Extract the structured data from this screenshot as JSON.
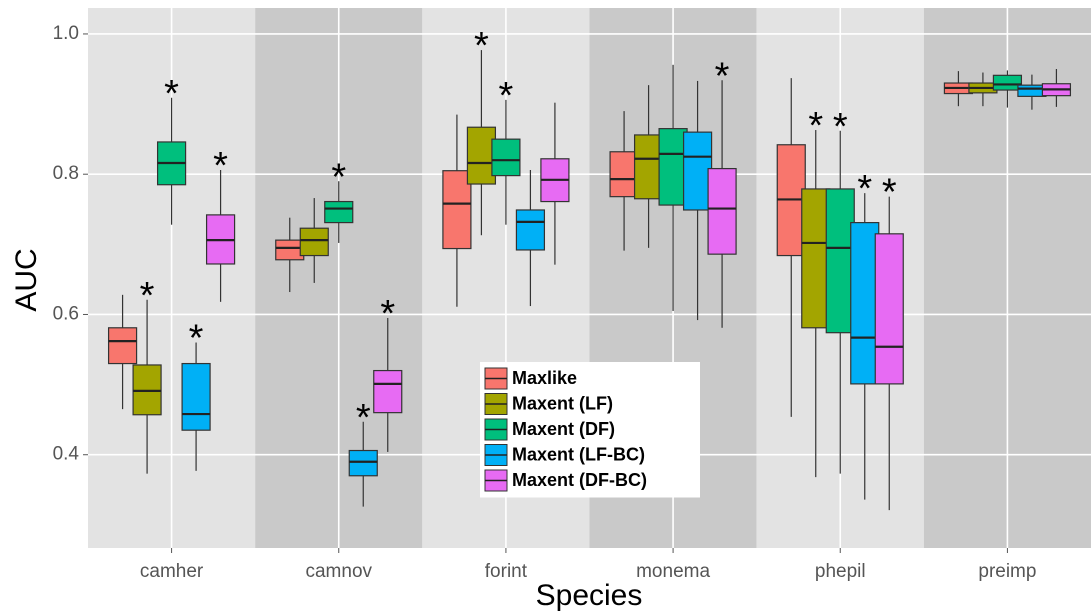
{
  "chart_data": {
    "type": "box",
    "x_label": "Species",
    "y_label": "AUC",
    "categories": [
      "camher",
      "camnov",
      "forint",
      "monema",
      "phepil",
      "preimp"
    ],
    "ylim": [
      0.267,
      1.037
    ],
    "yticks": [
      0.4,
      0.6,
      0.8,
      {
        "value": 1,
        "label": "1.0"
      }
    ],
    "grid": true,
    "legend_position": "center",
    "series": [
      {
        "name": "Maxlike",
        "color": "#F8766D",
        "values": [
          [
            0.465,
            0.53,
            0.562,
            0.581,
            0.628
          ],
          [
            0.632,
            0.678,
            0.695,
            0.706,
            0.738
          ],
          [
            0.611,
            0.694,
            0.758,
            0.805,
            0.885
          ],
          [
            0.691,
            0.768,
            0.793,
            0.832,
            0.89
          ],
          [
            0.454,
            0.684,
            0.764,
            0.842,
            0.937
          ],
          [
            0.897,
            0.915,
            0.923,
            0.93,
            0.947
          ]
        ],
        "markers": [
          null,
          null,
          null,
          null,
          null,
          null
        ]
      },
      {
        "name": "Maxent (LF)",
        "color": "#A3A500",
        "values": [
          [
            0.373,
            0.457,
            0.491,
            0.528,
            0.621
          ],
          [
            0.645,
            0.684,
            0.706,
            0.723,
            0.766
          ],
          [
            0.713,
            0.786,
            0.816,
            0.867,
            0.977
          ],
          [
            0.695,
            0.765,
            0.822,
            0.856,
            0.927
          ],
          [
            0.368,
            0.581,
            0.702,
            0.779,
            0.863
          ],
          [
            0.897,
            0.916,
            0.923,
            0.93,
            0.945
          ]
        ],
        "markers": [
          "*",
          null,
          "*",
          null,
          "*",
          null
        ]
      },
      {
        "name": "Maxent (DF)",
        "color": "#00BF7D",
        "values": [
          [
            0.728,
            0.785,
            0.816,
            0.846,
            0.909
          ],
          [
            0.702,
            0.731,
            0.751,
            0.761,
            0.79
          ],
          [
            0.728,
            0.798,
            0.82,
            0.85,
            0.906
          ],
          [
            0.605,
            0.756,
            0.829,
            0.865,
            0.956
          ],
          [
            0.373,
            0.574,
            0.695,
            0.779,
            0.862
          ],
          [
            0.895,
            0.92,
            0.928,
            0.941,
            0.948
          ]
        ],
        "markers": [
          "*",
          "*",
          "*",
          null,
          "*",
          null
        ]
      },
      {
        "name": "Maxent (LF-BC)",
        "color": "#00B0F6",
        "values": [
          [
            0.377,
            0.435,
            0.458,
            0.53,
            0.56
          ],
          [
            0.326,
            0.37,
            0.39,
            0.406,
            0.447
          ],
          [
            0.612,
            0.692,
            0.732,
            0.749,
            0.806
          ],
          [
            0.592,
            0.749,
            0.825,
            0.86,
            0.933
          ],
          [
            0.336,
            0.501,
            0.567,
            0.731,
            0.773
          ],
          [
            0.892,
            0.911,
            0.922,
            0.927,
            0.942
          ]
        ],
        "markers": [
          "*",
          "*",
          null,
          null,
          "*",
          null
        ]
      },
      {
        "name": "Maxent (DF-BC)",
        "color": "#E76BF3",
        "values": [
          [
            0.618,
            0.672,
            0.706,
            0.742,
            0.806
          ],
          [
            0.404,
            0.46,
            0.501,
            0.52,
            0.595
          ],
          [
            0.671,
            0.761,
            0.792,
            0.822,
            0.902
          ],
          [
            0.581,
            0.686,
            0.751,
            0.808,
            0.934
          ],
          [
            0.321,
            0.501,
            0.554,
            0.715,
            0.768
          ],
          [
            0.896,
            0.912,
            0.921,
            0.929,
            0.95
          ]
        ],
        "markers": [
          "*",
          "*",
          null,
          "*",
          "*",
          null
        ]
      }
    ]
  }
}
